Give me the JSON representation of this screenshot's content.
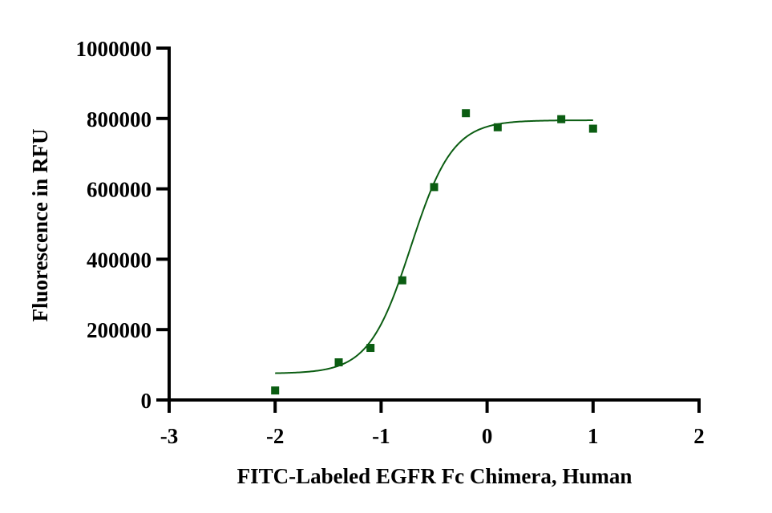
{
  "chart_data": {
    "type": "scatter",
    "xlabel": "FITC-Labeled EGFR Fc Chimera, Human",
    "ylabel": "Fluorescence in RFU",
    "xlim": [
      -3,
      2
    ],
    "ylim": [
      0,
      1000000
    ],
    "x_ticks": [
      -3,
      -2,
      -1,
      0,
      1,
      2
    ],
    "y_ticks": [
      0,
      200000,
      400000,
      600000,
      800000,
      1000000
    ],
    "x_tick_labels": [
      "-3",
      "-2",
      "-1",
      "0",
      "1",
      "2"
    ],
    "y_tick_labels": [
      "0",
      "200000",
      "400000",
      "600000",
      "800000",
      "1000000"
    ],
    "grid": false,
    "series": [
      {
        "x": [
          -2.0,
          -1.4,
          -1.1,
          -0.8,
          -0.5,
          -0.2,
          0.1,
          0.7,
          1.0
        ],
        "y": [
          27000,
          107000,
          148000,
          340000,
          605000,
          815000,
          775000,
          798000,
          771000
        ],
        "marker": "square",
        "color": "#0b5d12"
      }
    ],
    "fit_curve": {
      "model": "4PL sigmoid",
      "bottom": 75000,
      "top": 795000,
      "logEC50": -0.72,
      "hill": 2.2,
      "x_range": [
        -2.0,
        1.0
      ],
      "color": "#0b5d12"
    }
  }
}
